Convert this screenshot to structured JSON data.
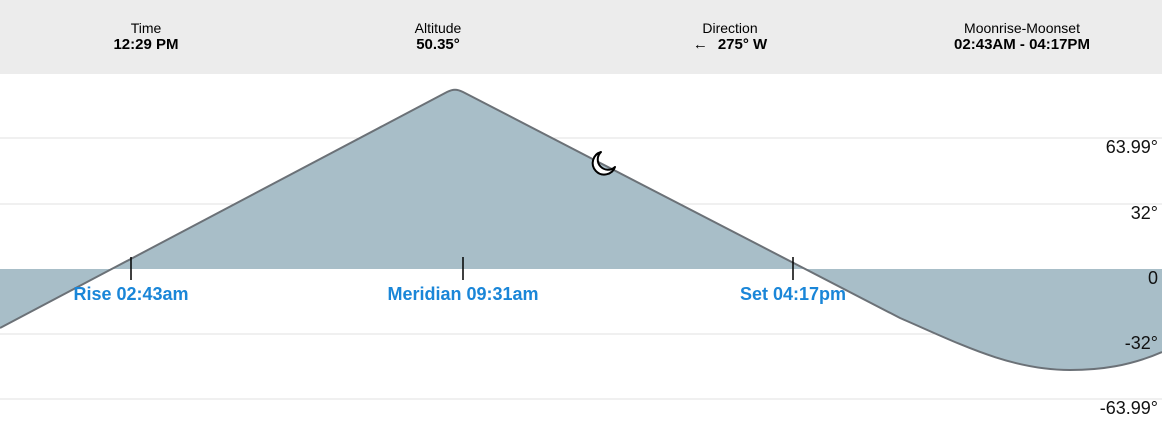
{
  "header": {
    "time": {
      "label": "Time",
      "value": "12:29 PM"
    },
    "altitude": {
      "label": "Altitude",
      "value": "50.35°"
    },
    "direction": {
      "label": "Direction",
      "arrow": "←",
      "value": "275° W"
    },
    "moonrise_moonset": {
      "label": "Moonrise-Moonset",
      "value": "02:43AM - 04:17PM"
    }
  },
  "events": {
    "rise": "Rise 02:43am",
    "meridian": "Meridian 09:31am",
    "set": "Set 04:17pm"
  },
  "y_axis_labels": [
    "63.99°",
    "32°",
    "0",
    "-32°",
    "-63.99°"
  ],
  "icons": {
    "moon": "crescent-moon-icon",
    "direction": "arrow-left-icon"
  },
  "colors": {
    "fill": "#a8bec8",
    "curve": "#6b7177",
    "event_text": "#1a86d8",
    "header_bg": "#ececec"
  },
  "chart_data": {
    "type": "area",
    "x_unit": "time",
    "y_unit": "degrees",
    "ylim": [
      -63.99,
      63.99
    ],
    "gridlines": [
      63.99,
      32,
      0,
      -32,
      -63.99
    ],
    "current_altitude": 50.35,
    "current_time": "12:29 PM",
    "events": [
      {
        "name": "Rise",
        "time": "02:43am",
        "altitude": 0
      },
      {
        "name": "Meridian",
        "time": "09:31am"
      },
      {
        "name": "Set",
        "time": "04:17pm",
        "altitude": 0
      }
    ]
  }
}
